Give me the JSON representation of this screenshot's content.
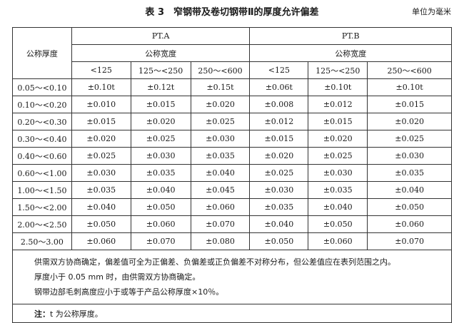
{
  "title": "表 3　窄钢带及卷切钢带Ⅱ的厚度允许偏差",
  "unit": "单位为毫米",
  "header": {
    "thickness": "公称厚度",
    "groups": [
      "PT.A",
      "PT.B"
    ],
    "width_label": "公称宽度",
    "widths": [
      "<125",
      "125～<250",
      "250～<600",
      "<125",
      "125～<250",
      "250～<600"
    ]
  },
  "rows": [
    [
      "0.05～<0.10",
      "±0.10t",
      "±0.12t",
      "±0.15t",
      "±0.06t",
      "±0.10t",
      "±0.10t"
    ],
    [
      "0.10～<0.20",
      "±0.010",
      "±0.015",
      "±0.020",
      "±0.008",
      "±0.012",
      "±0.015"
    ],
    [
      "0.20～<0.30",
      "±0.015",
      "±0.020",
      "±0.025",
      "±0.012",
      "±0.015",
      "±0.020"
    ],
    [
      "0.30～<0.40",
      "±0.020",
      "±0.025",
      "±0.030",
      "±0.015",
      "±0.020",
      "±0.025"
    ],
    [
      "0.40～<0.60",
      "±0.025",
      "±0.030",
      "±0.035",
      "±0.020",
      "±0.025",
      "±0.030"
    ],
    [
      "0.60～<1.00",
      "±0.030",
      "±0.035",
      "±0.040",
      "±0.025",
      "±0.030",
      "±0.035"
    ],
    [
      "1.00～<1.50",
      "±0.035",
      "±0.040",
      "±0.045",
      "±0.030",
      "±0.035",
      "±0.040"
    ],
    [
      "1.50～<2.00",
      "±0.040",
      "±0.050",
      "±0.060",
      "±0.035",
      "±0.040",
      "±0.050"
    ],
    [
      "2.00～<2.50",
      "±0.050",
      "±0.060",
      "±0.070",
      "±0.040",
      "±0.050",
      "±0.060"
    ],
    [
      "2.50～3.00",
      "±0.060",
      "±0.070",
      "±0.080",
      "±0.050",
      "±0.060",
      "±0.070"
    ]
  ],
  "notes": [
    "供需双方协商确定，偏差值可全为正偏差、负偏差或正负偏差不对称分布，但公差值应在表列范围之内。",
    "厚度小于 0.05 mm 时，由供需双方协商确定。",
    "钢带边部毛刺高度应小于或等于产品公称厚度×10％。"
  ],
  "footnote": {
    "label": "注：",
    "text": "t 为公称厚度。"
  }
}
